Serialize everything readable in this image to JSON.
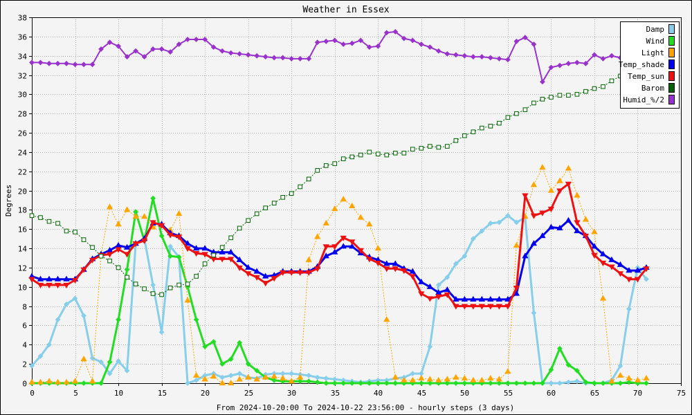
{
  "chart_data": {
    "type": "line",
    "title": "Weather in Essex",
    "ylabel": "Degrees",
    "xlabel": "From 2024-10-20:00 To 2024-10-22 23:56:00 - hourly steps (3 days)",
    "xlim": [
      0,
      75
    ],
    "ylim": [
      0,
      38
    ],
    "x_ticks": [
      0,
      5,
      10,
      15,
      20,
      25,
      30,
      35,
      40,
      45,
      50,
      55,
      60,
      65,
      70,
      75
    ],
    "y_ticks": [
      0,
      2,
      4,
      6,
      8,
      10,
      12,
      14,
      16,
      18,
      20,
      22,
      24,
      26,
      28,
      30,
      32,
      34,
      36,
      38
    ],
    "grid": true,
    "legend_position": "top-right",
    "series": [
      {
        "name": "Damp",
        "color": "#87ceeb",
        "marker": "diamond",
        "values": [
          1.8,
          2.8,
          4,
          6.6,
          8.2,
          8.8,
          7,
          2.6,
          2.2,
          1,
          2.3,
          1.3,
          14.5,
          15,
          10.2,
          5.3,
          14.2,
          13.1,
          0,
          0.3,
          0.8,
          1,
          0.6,
          0.8,
          1,
          0.6,
          0.5,
          0.9,
          1,
          1,
          1,
          0.9,
          0.8,
          0.6,
          0.5,
          0.4,
          0.3,
          0.2,
          0.1,
          0.2,
          0.3,
          0.3,
          0.5,
          0.6,
          1,
          1,
          3.8,
          10.2,
          11,
          12.4,
          13.2,
          15,
          15.8,
          16.6,
          16.7,
          17.4,
          16.7,
          17.2,
          7.3,
          0,
          0,
          0,
          0.1,
          0.2,
          0,
          0,
          0,
          0.3,
          1.8,
          7.7,
          12,
          10.8
        ]
      },
      {
        "name": "Wind",
        "color": "#22dd22",
        "marker": "diamond",
        "values": [
          0,
          0,
          0,
          0,
          0,
          0,
          0,
          0,
          0,
          2.2,
          6.6,
          11.8,
          17.8,
          14.8,
          19.2,
          15.3,
          13.2,
          13.1,
          10,
          6.6,
          3.8,
          4.3,
          2,
          2.5,
          4.2,
          2,
          1.3,
          0.6,
          0.3,
          0.2,
          0.2,
          0.2,
          0.2,
          0.1,
          0,
          0,
          0,
          0,
          0,
          0,
          0,
          0,
          0,
          0,
          0,
          0,
          0,
          0,
          0,
          0,
          0,
          0,
          0,
          0,
          0,
          0,
          0,
          0,
          0,
          0,
          1.4,
          3.6,
          1.9,
          1.3,
          0.1,
          0,
          0,
          0,
          0,
          0.1,
          0,
          0
        ]
      },
      {
        "name": "Light",
        "color": "#ffa500",
        "marker": "triangle-up",
        "values": [
          0.1,
          0.1,
          0.2,
          0.1,
          0.1,
          0.2,
          2.5,
          0.2,
          13.4,
          18.3,
          16.5,
          18,
          17.3,
          17.3,
          16.2,
          16.4,
          15.9,
          17.6,
          8.6,
          0.8,
          0.4,
          0.7,
          0,
          0,
          0.4,
          0.6,
          0.4,
          0.6,
          0.7,
          0.5,
          0.2,
          0.6,
          12.8,
          15.2,
          16.6,
          18.1,
          19.1,
          18.4,
          17.2,
          16.5,
          14,
          6.6,
          0.6,
          0.3,
          0.3,
          0.5,
          0.4,
          0.3,
          0.4,
          0.6,
          0.5,
          0.3,
          0.3,
          0.5,
          0.4,
          1.2,
          14.3,
          17.3,
          20.6,
          22.4,
          20,
          21,
          22.3,
          19.5,
          17,
          15.7,
          8.8,
          0.2,
          0.8,
          0.5,
          0.3,
          0.5
        ]
      },
      {
        "name": "Temp_shade",
        "color": "#0000ee",
        "marker": "triangle-up",
        "values": [
          11.1,
          10.8,
          10.8,
          10.8,
          10.8,
          10.8,
          11.8,
          12.9,
          13.4,
          13.8,
          14.3,
          14.1,
          14.5,
          15,
          16.6,
          16.5,
          15.6,
          15.3,
          14.5,
          14,
          14,
          13.6,
          13.6,
          13.6,
          12.8,
          12,
          11.6,
          11.1,
          11.2,
          11.6,
          11.6,
          11.6,
          11.6,
          12.1,
          13.2,
          13.6,
          14.2,
          14.2,
          13.5,
          13.1,
          12.8,
          12.4,
          12.4,
          11.9,
          11.6,
          10.5,
          10,
          9.4,
          9.7,
          8.7,
          8.7,
          8.7,
          8.7,
          8.7,
          8.7,
          8.7,
          9.3,
          13.2,
          14.5,
          15.3,
          16.2,
          16.1,
          16.9,
          15.8,
          15.3,
          14.2,
          13.4,
          12.8,
          12.3,
          11.7,
          11.7,
          12
        ]
      },
      {
        "name": "Temp_sun",
        "color": "#ee1111",
        "marker": "triangle-down",
        "values": [
          10.8,
          10.2,
          10.2,
          10.2,
          10.2,
          10.7,
          11.8,
          12.8,
          13.3,
          13.4,
          13.9,
          13.4,
          14.5,
          14.8,
          16.7,
          16.4,
          15.4,
          15.2,
          14,
          13.5,
          13.4,
          12.9,
          12.9,
          12.9,
          12,
          11.4,
          11,
          10.4,
          10.9,
          11.5,
          11.5,
          11.5,
          11.5,
          11.9,
          14.2,
          14.2,
          15.1,
          14.7,
          13.8,
          12.9,
          12.5,
          11.9,
          11.9,
          11.7,
          11.1,
          9.3,
          8.8,
          9,
          9.2,
          8,
          8,
          8,
          8,
          8,
          8,
          8,
          9.9,
          19.5,
          17.4,
          17.7,
          18.1,
          20,
          20.7,
          16.7,
          15.3,
          13.3,
          12.5,
          12.1,
          11.4,
          10.8,
          10.8,
          11.9
        ]
      },
      {
        "name": "Barom",
        "color": "#006400",
        "marker": "square",
        "values": [
          17.4,
          17.2,
          16.8,
          16.6,
          15.8,
          15.7,
          14.9,
          14.1,
          13.2,
          12.7,
          12,
          11,
          10.3,
          9.8,
          9.3,
          9.2,
          9.9,
          10.2,
          10.3,
          11.1,
          12.4,
          13.3,
          14.1,
          15.1,
          16.1,
          16.9,
          17.6,
          18.2,
          18.7,
          19.3,
          19.7,
          20.4,
          21.2,
          22.1,
          22.6,
          22.8,
          23.3,
          23.5,
          23.7,
          24,
          23.8,
          23.7,
          23.9,
          23.9,
          24.3,
          24.4,
          24.6,
          24.5,
          24.6,
          25.2,
          25.7,
          26.1,
          26.5,
          26.7,
          27,
          27.6,
          28,
          28.4,
          29.1,
          29.5,
          29.7,
          29.9,
          29.9,
          30,
          30.3,
          30.6,
          30.8,
          31.4,
          31.9,
          32.5,
          33.2,
          33.4
        ]
      },
      {
        "name": "Humid_%/2",
        "color": "#9932cc",
        "marker": "diamond",
        "values": [
          33.3,
          33.3,
          33.2,
          33.2,
          33.2,
          33.1,
          33.1,
          33.1,
          34.7,
          35.4,
          35,
          33.9,
          34.5,
          33.9,
          34.7,
          34.7,
          34.4,
          35.2,
          35.7,
          35.7,
          35.7,
          34.9,
          34.5,
          34.3,
          34.2,
          34.1,
          34,
          33.9,
          33.8,
          33.8,
          33.7,
          33.7,
          33.7,
          35.4,
          35.5,
          35.6,
          35.2,
          35.3,
          35.6,
          34.9,
          35,
          36.4,
          36.5,
          35.8,
          35.6,
          35.2,
          34.9,
          34.5,
          34.2,
          34.1,
          34,
          33.9,
          33.9,
          33.8,
          33.7,
          33.6,
          35.5,
          35.9,
          35.2,
          31.3,
          32.8,
          33,
          33.2,
          33.3,
          33.2,
          34.1,
          33.7,
          34,
          33.8,
          33.8,
          33.8,
          33.8
        ]
      }
    ]
  }
}
